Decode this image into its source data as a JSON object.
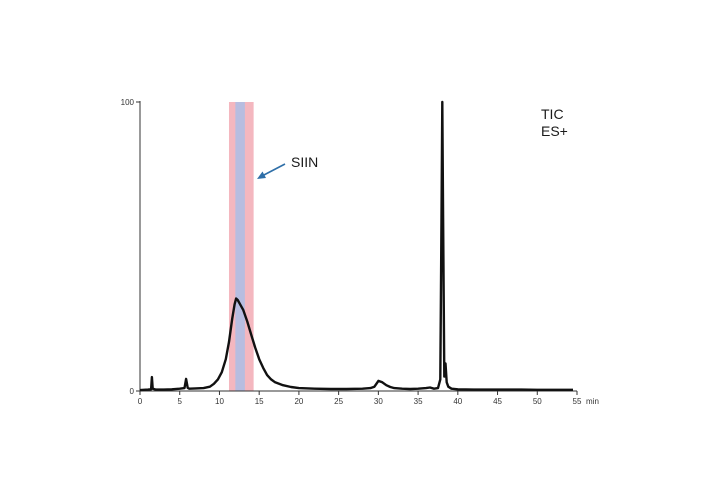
{
  "chart_data": {
    "type": "line",
    "title": "",
    "xlabel": "",
    "ylabel": "",
    "x_unit": "min",
    "xlim": [
      0,
      55
    ],
    "ylim": [
      0,
      100
    ],
    "x_ticks": [
      0,
      5,
      10,
      15,
      20,
      25,
      30,
      35,
      40,
      45,
      50,
      55
    ],
    "y_ticks": [
      0,
      100
    ],
    "grid": false,
    "legend": "none",
    "labels": {
      "trace": [
        "TIC",
        "ES+"
      ],
      "peak": "SIIN"
    },
    "highlight": {
      "outer": [
        11.2,
        14.3
      ],
      "inner": [
        12.0,
        13.2
      ],
      "outer_color": "#f4b7bf",
      "inner_color": "#b7bde0"
    },
    "arrow_color": "#2f6fa8",
    "line_color": "#111111",
    "series": [
      {
        "x": [
          0,
          1,
          1.4,
          1.5,
          1.6,
          2,
          3,
          4,
          5,
          5.6,
          5.8,
          6.0,
          6.2,
          7,
          8,
          8.8,
          9.3,
          9.8,
          10.3,
          10.8,
          11.2,
          11.6,
          11.9,
          12.1,
          12.3,
          12.6,
          13,
          13.5,
          14,
          14.5,
          15,
          15.5,
          16,
          16.5,
          17,
          18,
          19,
          20,
          22,
          24,
          26,
          28,
          29,
          29.5,
          30,
          30.5,
          31,
          31.5,
          32,
          33,
          34,
          35,
          36,
          36.5,
          37,
          37.5,
          37.8,
          37.95,
          38.05,
          38.15,
          38.3,
          38.45,
          38.6,
          38.8,
          39.2,
          40,
          42,
          44,
          46,
          48,
          50,
          52,
          54,
          54.5
        ],
        "y": [
          0.3,
          0.5,
          0.6,
          4.8,
          0.8,
          0.5,
          0.5,
          0.6,
          0.8,
          1.0,
          4.2,
          1.1,
          0.8,
          0.9,
          1.0,
          1.5,
          2.5,
          4.0,
          6.5,
          11.0,
          17.0,
          25.0,
          30.0,
          32.0,
          31.5,
          30.0,
          28.0,
          24.0,
          19.5,
          15.0,
          11.0,
          8.0,
          5.5,
          4.0,
          3.0,
          2.0,
          1.4,
          1.0,
          0.8,
          0.7,
          0.7,
          0.8,
          1.0,
          1.5,
          3.5,
          3.0,
          2.0,
          1.4,
          1.0,
          0.8,
          0.7,
          0.8,
          1.0,
          1.2,
          0.8,
          1.0,
          4.0,
          60.0,
          100.0,
          60.0,
          5.0,
          9.5,
          3.0,
          1.5,
          0.8,
          0.6,
          0.5,
          0.5,
          0.5,
          0.5,
          0.4,
          0.4,
          0.4,
          0.4
        ]
      }
    ]
  }
}
